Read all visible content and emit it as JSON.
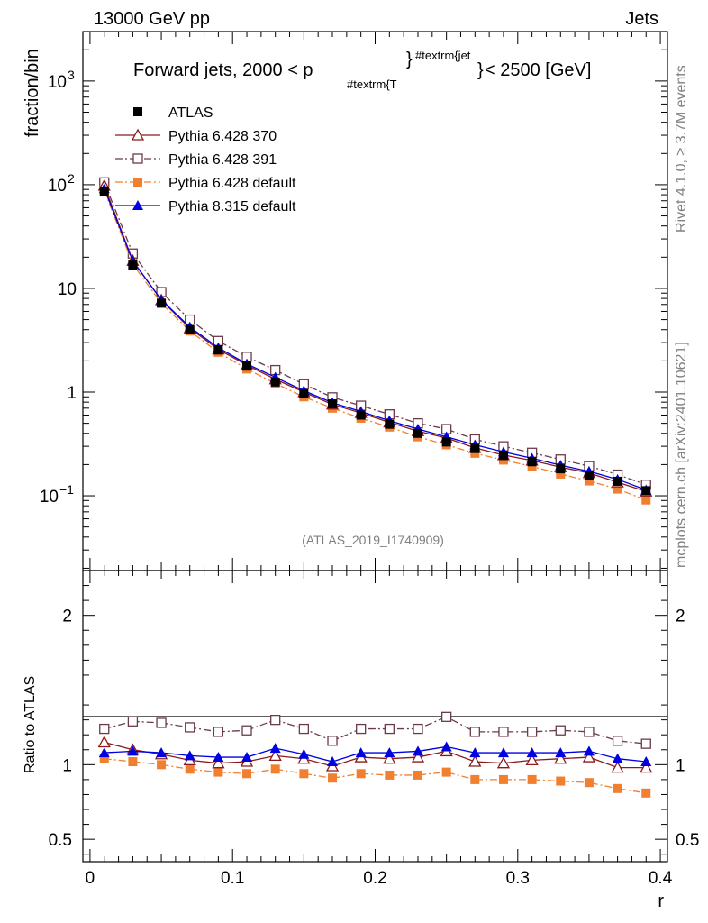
{
  "header": {
    "left": "13000 GeV pp",
    "right": "Jets"
  },
  "side": {
    "rivet": "Rivet 4.1.0, ≥ 3.7M events",
    "mcplots": "mcplots.cern.ch [arXiv:2401.10621]"
  },
  "chart_data": {
    "type": "line",
    "title_parts": {
      "pre": "Forward jets, 2000 < p",
      "sub": "#textrm{T",
      "sup": "#textrm{jet",
      "post": " < 2500 [GeV]"
    },
    "analysis_id": "(ATLAS_2019_I1740909)",
    "xlabel": "r",
    "ylabel": "fraction/bin",
    "ratio_ylabel": "Ratio to ATLAS",
    "xlim": [
      -0.005,
      0.405
    ],
    "ylim": [
      0.019,
      3000
    ],
    "yscale": "log",
    "ratio_ylim": [
      0.35,
      2.3
    ],
    "x_ticks": [
      "0",
      "0.1",
      "0.2",
      "0.3",
      "0.4"
    ],
    "y_ticks": [
      "10^3",
      "10^2",
      "10",
      "1",
      "10^-1"
    ],
    "ratio_ticks": [
      "2",
      "1",
      "0.5"
    ],
    "x": [
      0.01,
      0.03,
      0.05,
      0.07,
      0.09,
      0.11,
      0.13,
      0.15,
      0.17,
      0.19,
      0.21,
      0.23,
      0.25,
      0.27,
      0.29,
      0.31,
      0.33,
      0.35,
      0.37,
      0.39
    ],
    "series": [
      {
        "name": "ATLAS",
        "color": "#000000",
        "marker": "filled-square",
        "line": "none",
        "values": [
          85,
          16.8,
          7.2,
          4.0,
          2.55,
          1.78,
          1.25,
          0.96,
          0.77,
          0.6,
          0.49,
          0.4,
          0.33,
          0.285,
          0.245,
          0.213,
          0.182,
          0.158,
          0.138,
          0.112
        ]
      },
      {
        "name": "Pythia 6.428 370",
        "color": "#8b1a1a",
        "marker": "open-triangle",
        "line": "solid",
        "ratio": [
          1.15,
          1.1,
          1.07,
          1.03,
          1.01,
          1.02,
          1.06,
          1.04,
          0.99,
          1.05,
          1.04,
          1.05,
          1.09,
          1.02,
          1.01,
          1.03,
          1.04,
          1.05,
          0.98,
          0.98
        ],
        "values": [
          97.8,
          18.5,
          7.7,
          4.12,
          2.58,
          1.82,
          1.33,
          1.0,
          0.76,
          0.63,
          0.51,
          0.42,
          0.36,
          0.29,
          0.247,
          0.219,
          0.189,
          0.166,
          0.135,
          0.11
        ]
      },
      {
        "name": "Pythia 6.428 391",
        "color": "#6b3a4b",
        "marker": "open-square",
        "line": "dashdot",
        "ratio": [
          1.24,
          1.29,
          1.28,
          1.25,
          1.22,
          1.23,
          1.3,
          1.24,
          1.16,
          1.24,
          1.24,
          1.24,
          1.32,
          1.22,
          1.22,
          1.22,
          1.23,
          1.22,
          1.16,
          1.14
        ],
        "values": [
          105.4,
          21.7,
          9.22,
          5.0,
          3.11,
          2.19,
          1.63,
          1.19,
          0.89,
          0.74,
          0.61,
          0.5,
          0.44,
          0.35,
          0.3,
          0.26,
          0.224,
          0.193,
          0.16,
          0.128
        ]
      },
      {
        "name": "Pythia 6.428 default",
        "color": "#f08030",
        "marker": "filled-square",
        "line": "dashdot",
        "ratio": [
          1.04,
          1.02,
          1.0,
          0.97,
          0.95,
          0.94,
          0.97,
          0.94,
          0.91,
          0.94,
          0.93,
          0.93,
          0.95,
          0.9,
          0.9,
          0.9,
          0.89,
          0.88,
          0.84,
          0.81
        ],
        "values": [
          88.4,
          17.1,
          7.2,
          3.88,
          2.42,
          1.67,
          1.21,
          0.9,
          0.7,
          0.56,
          0.46,
          0.37,
          0.31,
          0.257,
          0.221,
          0.192,
          0.162,
          0.139,
          0.116,
          0.091
        ]
      },
      {
        "name": "Pythia 8.315 default",
        "color": "#0000e0",
        "marker": "filled-triangle",
        "line": "solid",
        "ratio": [
          1.08,
          1.09,
          1.08,
          1.06,
          1.05,
          1.05,
          1.11,
          1.07,
          1.02,
          1.08,
          1.08,
          1.09,
          1.12,
          1.08,
          1.08,
          1.08,
          1.08,
          1.09,
          1.04,
          1.02
        ],
        "values": [
          91.8,
          18.3,
          7.78,
          4.24,
          2.68,
          1.87,
          1.39,
          1.03,
          0.79,
          0.65,
          0.53,
          0.44,
          0.37,
          0.31,
          0.265,
          0.23,
          0.197,
          0.172,
          0.144,
          0.114
        ]
      }
    ]
  }
}
